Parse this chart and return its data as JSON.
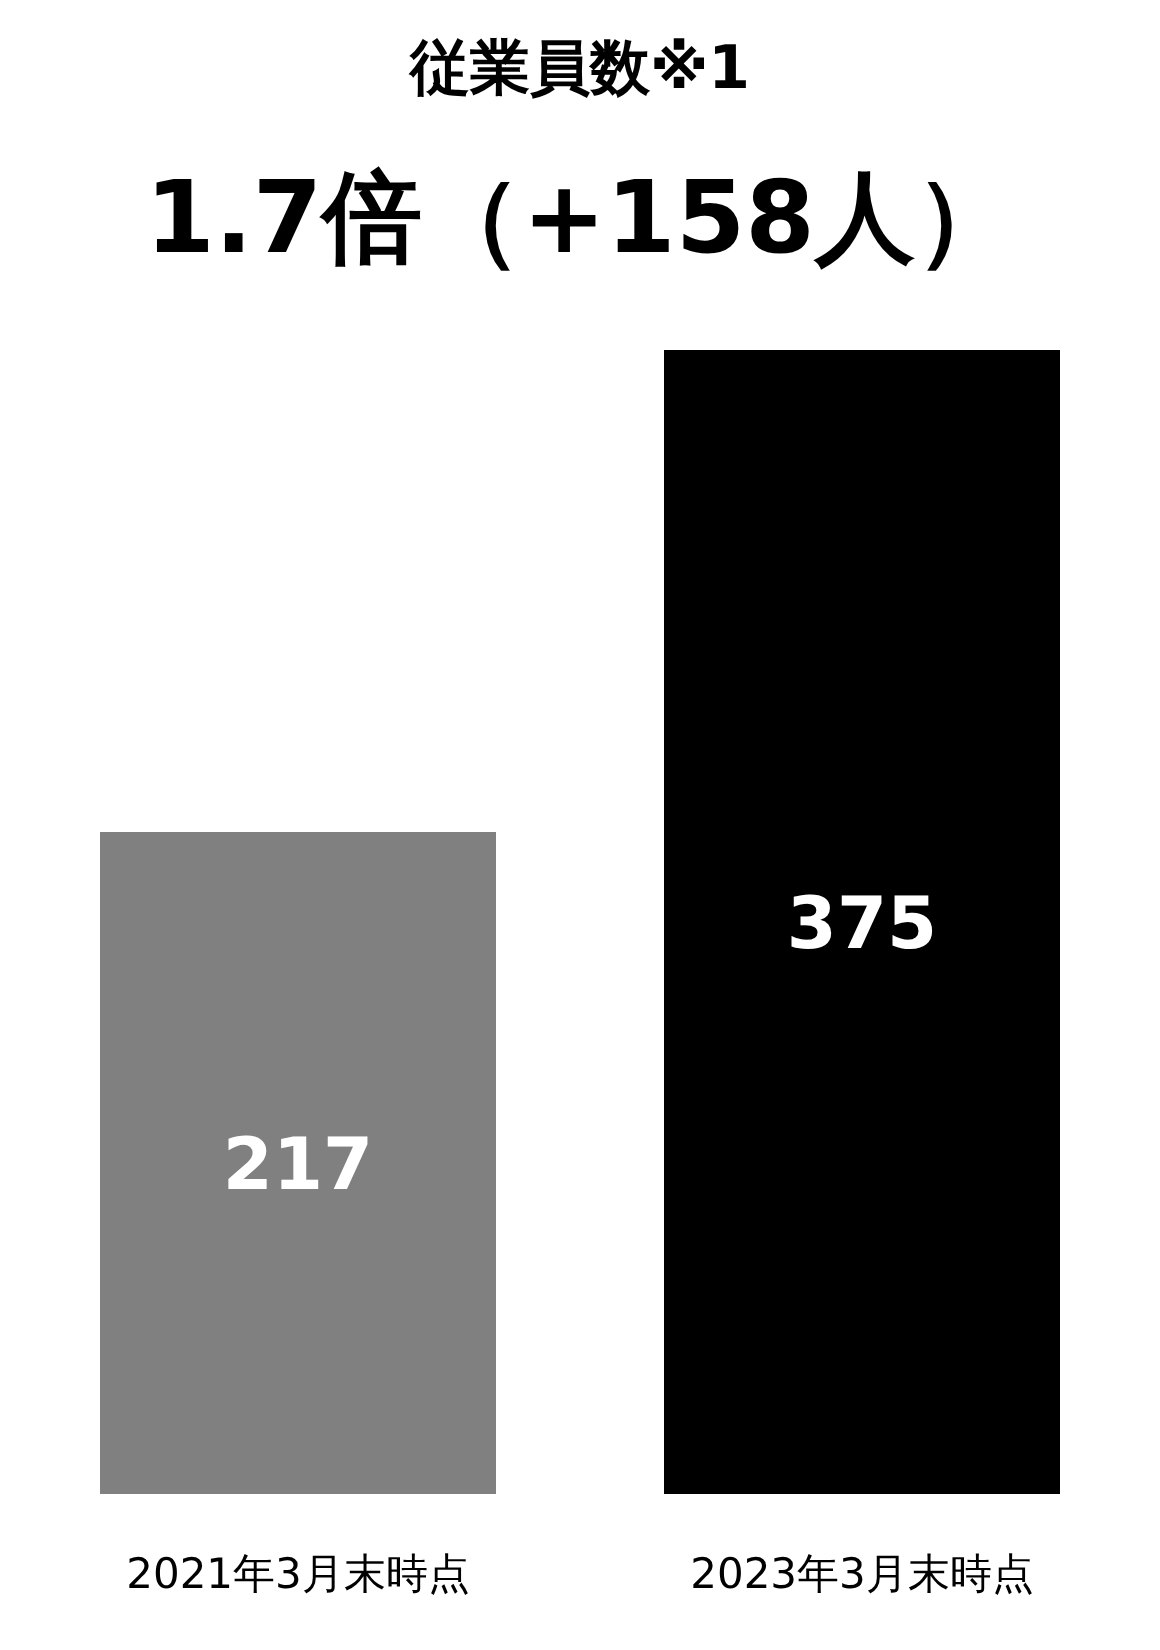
{
  "chart_data": {
    "type": "bar",
    "title": "従業員数※1",
    "subtitle": "1.7倍（+158人）",
    "categories": [
      "2021年3月末時点",
      "2023年3月末時点"
    ],
    "values": [
      217,
      375
    ],
    "colors": [
      "#808080",
      "#000000"
    ],
    "data_labels": true
  }
}
